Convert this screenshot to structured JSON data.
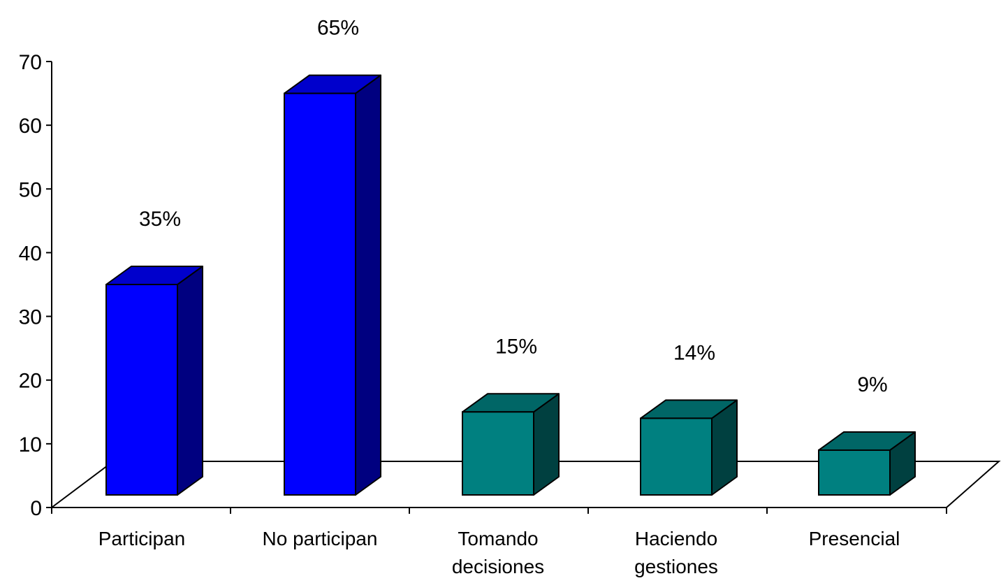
{
  "chart_data": {
    "type": "bar",
    "categories": [
      [
        "Participan"
      ],
      [
        "No participan"
      ],
      [
        "Tomando",
        "decisiones"
      ],
      [
        "Haciendo",
        "gestiones"
      ],
      [
        "Presencial"
      ]
    ],
    "values": [
      35,
      65,
      15,
      14,
      9
    ],
    "data_labels": [
      "35%",
      "65%",
      "15%",
      "14%",
      "9%"
    ],
    "bar_colors": [
      {
        "front": "#0000FF",
        "top": "#0000CC",
        "side": "#000080"
      },
      {
        "front": "#0000FF",
        "top": "#0000CC",
        "side": "#000080"
      },
      {
        "front": "#008080",
        "top": "#006666",
        "side": "#004040"
      },
      {
        "front": "#008080",
        "top": "#006666",
        "side": "#004040"
      },
      {
        "front": "#008080",
        "top": "#006666",
        "side": "#004040"
      }
    ],
    "ylim": [
      0,
      70
    ],
    "yticks": [
      0,
      10,
      20,
      30,
      40,
      50,
      60,
      70
    ],
    "grid": false,
    "legend": "none",
    "three_d": true
  }
}
